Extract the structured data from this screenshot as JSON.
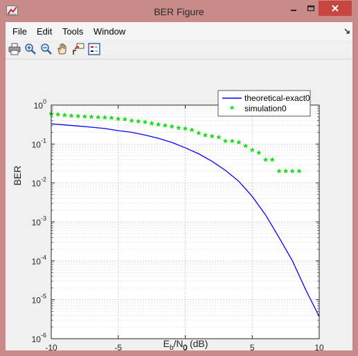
{
  "window": {
    "title": "BER Figure",
    "icons": {
      "app": "matlab-figure-icon",
      "minimize": "minimize-icon",
      "maximize": "maximize-icon",
      "close": "close-icon"
    }
  },
  "menubar": {
    "items": [
      {
        "label": "File"
      },
      {
        "label": "Edit"
      },
      {
        "label": "Tools"
      },
      {
        "label": "Window"
      }
    ],
    "dock_icon": "dock-arrow-icon"
  },
  "toolbar": {
    "tools": [
      {
        "name": "print-icon"
      },
      {
        "name": "zoom-in-icon"
      },
      {
        "name": "zoom-out-icon"
      },
      {
        "name": "pan-icon"
      },
      {
        "name": "data-cursor-icon"
      },
      {
        "name": "insert-legend-icon"
      }
    ]
  },
  "colors": {
    "theory": "#0000ff",
    "simulation": "#00dd00"
  },
  "chart_data": {
    "type": "line",
    "ylabel": "BER",
    "xlim": [
      -10,
      10
    ],
    "ylim": [
      1e-06,
      1
    ],
    "yscale": "log",
    "grid": true,
    "legend_position": "top-right",
    "x_ticks": [
      "-10",
      "-5",
      "0",
      "5",
      "10"
    ],
    "y_ticks": [
      {
        "base": "10",
        "exp": "0"
      },
      {
        "base": "10",
        "exp": "-1"
      },
      {
        "base": "10",
        "exp": "-2"
      },
      {
        "base": "10",
        "exp": "-3"
      },
      {
        "base": "10",
        "exp": "-4"
      },
      {
        "base": "10",
        "exp": "-5"
      },
      {
        "base": "10",
        "exp": "-6"
      }
    ],
    "series": [
      {
        "name": "theoretical-exact0",
        "style": "line",
        "x": [
          -10,
          -9,
          -8,
          -7,
          -6,
          -5,
          -4,
          -3,
          -2,
          -1,
          0,
          1,
          2,
          3,
          4,
          5,
          6,
          7,
          8,
          9,
          10
        ],
        "y": [
          0.33,
          0.31,
          0.29,
          0.27,
          0.25,
          0.22,
          0.2,
          0.17,
          0.14,
          0.11,
          0.08,
          0.056,
          0.036,
          0.021,
          0.011,
          0.0045,
          0.0015,
          0.0004,
          0.0001,
          1.8e-05,
          3.7e-06
        ]
      },
      {
        "name": "simulation0",
        "style": "markers",
        "x": [
          -10,
          -9.5,
          -9,
          -8.5,
          -8,
          -7.5,
          -7,
          -6.5,
          -6,
          -5.5,
          -5,
          -4.5,
          -4,
          -3.5,
          -3,
          -2.5,
          -2,
          -1.5,
          -1,
          -0.5,
          0,
          0.5,
          1,
          1.5,
          2,
          2.5,
          3,
          3.5,
          4,
          4.5,
          5,
          5.5,
          6,
          6.5,
          7,
          7.5,
          8,
          8.5
        ],
        "y": [
          0.6,
          0.58,
          0.55,
          0.53,
          0.52,
          0.51,
          0.5,
          0.49,
          0.48,
          0.47,
          0.44,
          0.43,
          0.4,
          0.38,
          0.37,
          0.34,
          0.32,
          0.3,
          0.28,
          0.26,
          0.25,
          0.23,
          0.19,
          0.17,
          0.16,
          0.15,
          0.12,
          0.12,
          0.11,
          0.09,
          0.07,
          0.06,
          0.04,
          0.04,
          0.02,
          0.02,
          0.02,
          0.02
        ]
      }
    ]
  }
}
